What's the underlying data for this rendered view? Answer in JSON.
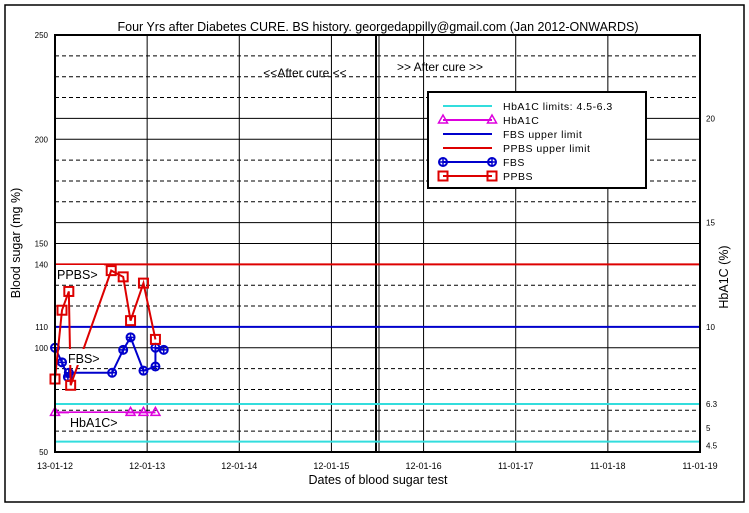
{
  "chart_data": {
    "type": "line",
    "title": "Four Yrs after Diabetes CURE. BS history. georgedappilly@gmail.com (Jan 2012-ONWARDS)",
    "xlabel": "Dates of blood sugar test",
    "ylabel": "Blood sugar (mg %)",
    "y2label": "HbA1C (%)",
    "x_unit": "years since 13-01-12",
    "xlim": [
      0,
      7
    ],
    "ylim": [
      50,
      250
    ],
    "y2_relation": "blood_sugar = 10 * HbA1C + 10",
    "x_ticks": [
      {
        "v": 0,
        "label": "13-01-12"
      },
      {
        "v": 1,
        "label": "12-01-13"
      },
      {
        "v": 2,
        "label": "12-01-14"
      },
      {
        "v": 3,
        "label": "12-01-15"
      },
      {
        "v": 4,
        "label": "12-01-16"
      },
      {
        "v": 5,
        "label": "11-01-17"
      },
      {
        "v": 6,
        "label": "11-01-18"
      },
      {
        "v": 7,
        "label": "11-01-19"
      }
    ],
    "y_ticks": [
      50,
      100,
      110,
      140,
      150,
      200,
      250
    ],
    "y2_ticks": [
      4.5,
      5,
      6.3,
      10,
      15,
      20
    ],
    "grid": true,
    "cure_line_x": 3.5,
    "annotations": {
      "before_cure": "<<After cure <<",
      "after_cure": ">> After cure >>",
      "ppbs_tag": "PPBS>",
      "fbs_tag": "FBS>",
      "hba1c_tag": "HbA1C>"
    },
    "reference_lines": [
      {
        "name": "HbA1C limits: 4.5-6.3",
        "axis": "y2",
        "values": [
          4.5,
          6.3
        ],
        "color": "#33dddd"
      },
      {
        "name": "FBS upper limit",
        "axis": "y",
        "values": [
          110
        ],
        "color": "#0000cc"
      },
      {
        "name": "PPBS upper limit",
        "axis": "y",
        "values": [
          140
        ],
        "color": "#dd0000"
      }
    ],
    "series": [
      {
        "name": "HbA1C",
        "axis": "y2",
        "marker": "triangle",
        "color": "#dd00dd",
        "x": [
          0,
          0.82,
          0.96,
          1.09
        ],
        "values": [
          5.9,
          5.9,
          5.9,
          5.9
        ]
      },
      {
        "name": "FBS",
        "axis": "y",
        "marker": "circle-cross",
        "color": "#0000cc",
        "x": [
          0,
          0.076,
          0.14,
          0.15,
          0.62,
          0.74,
          0.82,
          0.96,
          1.09,
          1.09,
          1.18
        ],
        "values": [
          100,
          93,
          86,
          88,
          88,
          99,
          105,
          89,
          91,
          100,
          99
        ]
      },
      {
        "name": "PPBS",
        "axis": "y",
        "marker": "square",
        "color": "#dd0000",
        "x": [
          0,
          0.076,
          0.15,
          0.17,
          0.61,
          0.74,
          0.82,
          0.96,
          1.09
        ],
        "values": [
          85,
          118,
          127,
          82,
          137,
          134,
          113,
          131,
          104
        ]
      }
    ],
    "legend_position": "top-right",
    "legend": [
      "HbA1C limits: 4.5-6.3",
      "HbA1C",
      "FBS upper limit",
      "PPBS upper limit",
      "FBS",
      "PPBS"
    ]
  }
}
